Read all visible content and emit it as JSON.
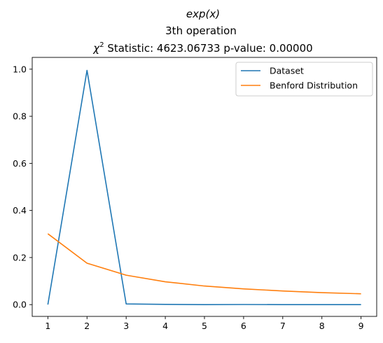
{
  "chart_data": {
    "type": "line",
    "title_lines": [
      "exp(x)",
      "3th operation",
      "χ² Statistic: 4623.06733 p-value: 0.00000"
    ],
    "title": {
      "func": "exp(x)",
      "operation": "3th operation",
      "chi_symbol": "χ",
      "chi_sup": "2",
      "stat_text": " Statistic: 4623.06733 p-value: 0.00000"
    },
    "xlabel": "",
    "ylabel": "",
    "x": [
      1,
      2,
      3,
      4,
      5,
      6,
      7,
      8,
      9
    ],
    "xticks": [
      "1",
      "2",
      "3",
      "4",
      "5",
      "6",
      "7",
      "8",
      "9"
    ],
    "yticks": [
      "0.0",
      "0.2",
      "0.4",
      "0.6",
      "0.8",
      "1.0"
    ],
    "xlim": [
      0.6,
      9.4
    ],
    "ylim": [
      -0.05,
      1.05
    ],
    "grid": false,
    "legend_position": "upper-right",
    "series": [
      {
        "name": "Dataset",
        "color": "#1f77b4",
        "values": [
          0.0,
          0.995,
          0.003,
          0.001,
          0.0,
          0.0005,
          0.0,
          0.0,
          0.0
        ]
      },
      {
        "name": "Benford Distribution",
        "color": "#ff7f0e",
        "values": [
          0.301,
          0.176,
          0.125,
          0.097,
          0.079,
          0.067,
          0.058,
          0.051,
          0.046
        ]
      }
    ]
  }
}
